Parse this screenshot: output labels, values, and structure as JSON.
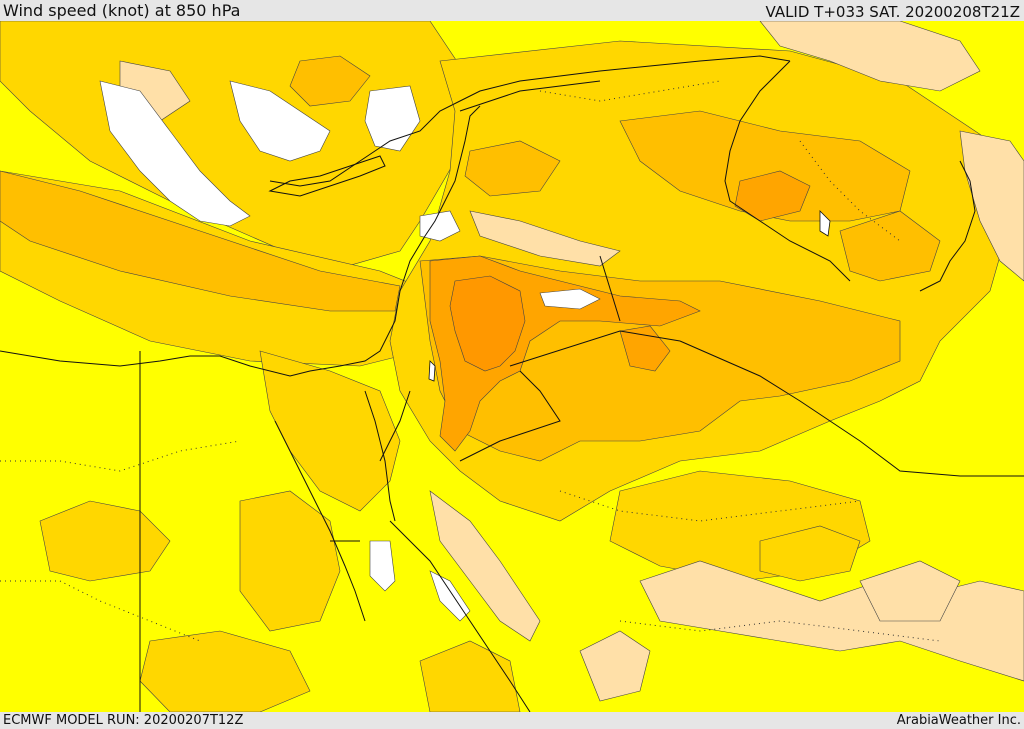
{
  "header": {
    "title": "Wind speed (knot) at 850 hPa",
    "valid": "VALID T+033 SAT. 20200208T21Z"
  },
  "footer": {
    "model_run": "ECMWF MODEL RUN: 20200207T12Z",
    "credit": "ArabiaWeather Inc."
  },
  "colors": {
    "light_band": "#ffffff",
    "pale_band": "#ffe0a8",
    "base_band": "#ffff00",
    "band_2": "#ffd700",
    "band_3": "#ffbf00",
    "band_4": "#ffa500",
    "band_5": "#ff9800",
    "water": "#ffffff",
    "coast_line": "#111111"
  }
}
